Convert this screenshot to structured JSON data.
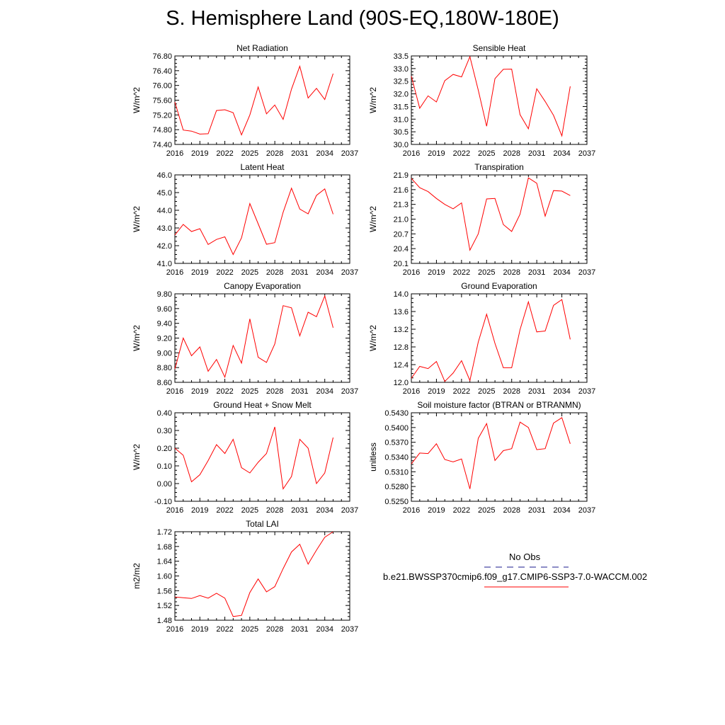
{
  "page_title": "S. Hemisphere Land (90S-EQ,180W-180E)",
  "legend": {
    "obs_label": "No Obs",
    "obs_color": "#1a1a8c",
    "model_label": "b.e21.BWSSP370cmip6.f09_g17.CMIP6-SSP3-7.0-WACCM.002",
    "model_color": "#ff0000"
  },
  "chart_data": [
    {
      "type": "line",
      "title": "Net Radiation",
      "ylabel": "W/m^2",
      "x": [
        2016,
        2017,
        2018,
        2019,
        2020,
        2021,
        2022,
        2023,
        2024,
        2025,
        2026,
        2027,
        2028,
        2029,
        2030,
        2031,
        2032,
        2033,
        2034,
        2035
      ],
      "xlim": [
        2016,
        2037
      ],
      "xticks": [
        "2016",
        "2019",
        "2022",
        "2025",
        "2028",
        "2031",
        "2034",
        "2037"
      ],
      "ylim": [
        74.4,
        76.8
      ],
      "yticks": [
        "74.40",
        "74.80",
        "75.20",
        "75.60",
        "76.00",
        "76.40",
        "76.80"
      ],
      "series": [
        {
          "color": "#ff0000",
          "values": [
            75.55,
            74.79,
            74.76,
            74.68,
            74.69,
            75.32,
            75.34,
            75.26,
            74.66,
            75.2,
            75.96,
            75.23,
            75.47,
            75.08,
            75.9,
            76.52,
            75.66,
            75.92,
            75.62,
            76.32
          ]
        }
      ]
    },
    {
      "type": "line",
      "title": "Sensible Heat",
      "ylabel": "W/m^2",
      "x": [
        2016,
        2017,
        2018,
        2019,
        2020,
        2021,
        2022,
        2023,
        2024,
        2025,
        2026,
        2027,
        2028,
        2029,
        2030,
        2031,
        2032,
        2033,
        2034,
        2035
      ],
      "xlim": [
        2016,
        2037
      ],
      "xticks": [
        "2016",
        "2019",
        "2022",
        "2025",
        "2028",
        "2031",
        "2034",
        "2037"
      ],
      "ylim": [
        30.0,
        33.5
      ],
      "yticks": [
        "30.0",
        "30.5",
        "31.0",
        "31.5",
        "32.0",
        "32.5",
        "33.0",
        "33.5"
      ],
      "series": [
        {
          "color": "#ff0000",
          "values": [
            32.7,
            31.43,
            31.92,
            31.68,
            32.52,
            32.77,
            32.67,
            33.47,
            32.15,
            30.72,
            32.6,
            32.97,
            32.98,
            31.18,
            30.62,
            32.2,
            31.7,
            31.15,
            30.34,
            32.3
          ]
        }
      ]
    },
    {
      "type": "line",
      "title": "Latent Heat",
      "ylabel": "W/m^2",
      "x": [
        2016,
        2017,
        2018,
        2019,
        2020,
        2021,
        2022,
        2023,
        2024,
        2025,
        2026,
        2027,
        2028,
        2029,
        2030,
        2031,
        2032,
        2033,
        2034,
        2035
      ],
      "xlim": [
        2016,
        2037
      ],
      "xticks": [
        "2016",
        "2019",
        "2022",
        "2025",
        "2028",
        "2031",
        "2034",
        "2037"
      ],
      "ylim": [
        41.0,
        46.0
      ],
      "yticks": [
        "41.0",
        "42.0",
        "43.0",
        "44.0",
        "45.0",
        "46.0"
      ],
      "series": [
        {
          "color": "#ff0000",
          "values": [
            42.6,
            43.2,
            42.8,
            42.96,
            42.07,
            42.35,
            42.5,
            41.5,
            42.44,
            44.38,
            43.24,
            42.08,
            42.17,
            43.89,
            45.25,
            44.07,
            43.8,
            44.84,
            45.21,
            43.78
          ]
        }
      ]
    },
    {
      "type": "line",
      "title": "Transpiration",
      "ylabel": "W/m^2",
      "x": [
        2016,
        2017,
        2018,
        2019,
        2020,
        2021,
        2022,
        2023,
        2024,
        2025,
        2026,
        2027,
        2028,
        2029,
        2030,
        2031,
        2032,
        2033,
        2034,
        2035
      ],
      "xlim": [
        2016,
        2037
      ],
      "xticks": [
        "2016",
        "2019",
        "2022",
        "2025",
        "2028",
        "2031",
        "2034",
        "2037"
      ],
      "ylim": [
        20.1,
        21.9
      ],
      "yticks": [
        "20.1",
        "20.4",
        "20.7",
        "21.0",
        "21.3",
        "21.6",
        "21.9"
      ],
      "series": [
        {
          "color": "#ff0000",
          "values": [
            21.83,
            21.64,
            21.56,
            21.42,
            21.3,
            21.21,
            21.33,
            20.37,
            20.7,
            21.41,
            21.42,
            20.89,
            20.75,
            21.1,
            21.84,
            21.73,
            21.06,
            21.58,
            21.57,
            21.48
          ]
        }
      ]
    },
    {
      "type": "line",
      "title": "Canopy Evaporation",
      "ylabel": "W/m^2",
      "x": [
        2016,
        2017,
        2018,
        2019,
        2020,
        2021,
        2022,
        2023,
        2024,
        2025,
        2026,
        2027,
        2028,
        2029,
        2030,
        2031,
        2032,
        2033,
        2034,
        2035
      ],
      "xlim": [
        2016,
        2037
      ],
      "xticks": [
        "2016",
        "2019",
        "2022",
        "2025",
        "2028",
        "2031",
        "2034",
        "2037"
      ],
      "ylim": [
        8.6,
        9.8
      ],
      "yticks": [
        "8.60",
        "8.80",
        "9.00",
        "9.20",
        "9.40",
        "9.60",
        "9.80"
      ],
      "series": [
        {
          "color": "#ff0000",
          "values": [
            8.78,
            9.2,
            8.96,
            9.08,
            8.75,
            8.91,
            8.67,
            9.1,
            8.86,
            9.46,
            8.94,
            8.87,
            9.12,
            9.64,
            9.61,
            9.23,
            9.55,
            9.49,
            9.77,
            9.34
          ]
        }
      ]
    },
    {
      "type": "line",
      "title": "Ground Evaporation",
      "ylabel": "W/m^2",
      "x": [
        2016,
        2017,
        2018,
        2019,
        2020,
        2021,
        2022,
        2023,
        2024,
        2025,
        2026,
        2027,
        2028,
        2029,
        2030,
        2031,
        2032,
        2033,
        2034,
        2035
      ],
      "xlim": [
        2016,
        2037
      ],
      "xticks": [
        "2016",
        "2019",
        "2022",
        "2025",
        "2028",
        "2031",
        "2034",
        "2037"
      ],
      "ylim": [
        12.0,
        14.0
      ],
      "yticks": [
        "12.0",
        "12.4",
        "12.8",
        "13.2",
        "13.6",
        "14.0"
      ],
      "series": [
        {
          "color": "#ff0000",
          "values": [
            12.09,
            12.36,
            12.31,
            12.47,
            12.02,
            12.21,
            12.49,
            12.04,
            12.91,
            13.54,
            12.88,
            12.33,
            12.33,
            13.19,
            13.82,
            13.14,
            13.16,
            13.74,
            13.87,
            12.97
          ]
        }
      ]
    },
    {
      "type": "line",
      "title": "Ground Heat + Snow Melt",
      "ylabel": "W/m^2",
      "x": [
        2016,
        2017,
        2018,
        2019,
        2020,
        2021,
        2022,
        2023,
        2024,
        2025,
        2026,
        2027,
        2028,
        2029,
        2030,
        2031,
        2032,
        2033,
        2034,
        2035
      ],
      "xlim": [
        2016,
        2037
      ],
      "xticks": [
        "2016",
        "2019",
        "2022",
        "2025",
        "2028",
        "2031",
        "2034",
        "2037"
      ],
      "ylim": [
        -0.1,
        0.4
      ],
      "yticks": [
        "-0.10",
        "0.00",
        "0.10",
        "0.20",
        "0.30",
        "0.40"
      ],
      "series": [
        {
          "color": "#ff0000",
          "values": [
            0.2,
            0.16,
            0.01,
            0.05,
            0.13,
            0.22,
            0.17,
            0.25,
            0.09,
            0.06,
            0.12,
            0.17,
            0.32,
            -0.03,
            0.04,
            0.25,
            0.2,
            0.0,
            0.06,
            0.26
          ]
        }
      ]
    },
    {
      "type": "line",
      "title": "Soil moisture factor (BTRAN or BTRANMN)",
      "ylabel": "unitless",
      "x": [
        2016,
        2017,
        2018,
        2019,
        2020,
        2021,
        2022,
        2023,
        2024,
        2025,
        2026,
        2027,
        2028,
        2029,
        2030,
        2031,
        2032,
        2033,
        2034,
        2035
      ],
      "xlim": [
        2016,
        2037
      ],
      "xticks": [
        "2016",
        "2019",
        "2022",
        "2025",
        "2028",
        "2031",
        "2034",
        "2037"
      ],
      "ylim": [
        0.525,
        0.543
      ],
      "yticks": [
        "0.5250",
        "0.5280",
        "0.5310",
        "0.5340",
        "0.5370",
        "0.5400",
        "0.5430"
      ],
      "series": [
        {
          "color": "#ff0000",
          "values": [
            0.5326,
            0.5348,
            0.5347,
            0.5367,
            0.5335,
            0.533,
            0.5336,
            0.5275,
            0.5378,
            0.5408,
            0.5333,
            0.5353,
            0.5357,
            0.5411,
            0.54,
            0.5355,
            0.5357,
            0.5409,
            0.542,
            0.5367
          ]
        }
      ]
    },
    {
      "type": "line",
      "title": "Total LAI",
      "ylabel": "m2/m2",
      "x": [
        2016,
        2017,
        2018,
        2019,
        2020,
        2021,
        2022,
        2023,
        2024,
        2025,
        2026,
        2027,
        2028,
        2029,
        2030,
        2031,
        2032,
        2033,
        2034,
        2035
      ],
      "xlim": [
        2016,
        2037
      ],
      "xticks": [
        "2016",
        "2019",
        "2022",
        "2025",
        "2028",
        "2031",
        "2034",
        "2037"
      ],
      "ylim": [
        1.48,
        1.72
      ],
      "yticks": [
        "1.48",
        "1.52",
        "1.56",
        "1.60",
        "1.64",
        "1.68",
        "1.72"
      ],
      "series": [
        {
          "color": "#ff0000",
          "values": [
            1.543,
            1.541,
            1.539,
            1.547,
            1.54,
            1.553,
            1.54,
            1.49,
            1.493,
            1.555,
            1.592,
            1.557,
            1.571,
            1.62,
            1.665,
            1.686,
            1.632,
            1.67,
            1.705,
            1.72
          ]
        }
      ]
    }
  ]
}
